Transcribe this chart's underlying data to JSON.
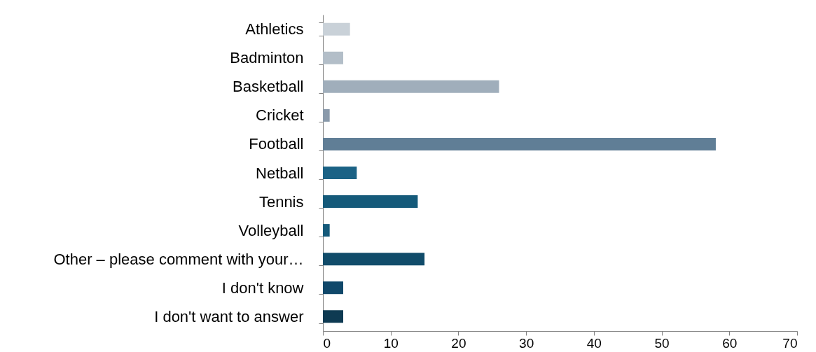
{
  "chart_data": {
    "type": "bar",
    "orientation": "horizontal",
    "categories": [
      "Athletics",
      "Badminton",
      "Basketball",
      "Cricket",
      "Football",
      "Netball",
      "Tennis",
      "Volleyball",
      "Other – please comment with your…",
      "I don't know",
      "I don't want to answer"
    ],
    "values": [
      4,
      3,
      26,
      1,
      58,
      5,
      14,
      1,
      15,
      3,
      3
    ],
    "colors": [
      "#c9d1d8",
      "#b3bec8",
      "#a0aebb",
      "#8a9aab",
      "#607e96",
      "#1b6285",
      "#155a7a",
      "#155a7a",
      "#114c6a",
      "#10486a",
      "#0e3a52"
    ],
    "xlim": [
      0,
      70
    ],
    "xticks": [
      0,
      10,
      20,
      30,
      40,
      50,
      60,
      70
    ],
    "grid": false
  }
}
